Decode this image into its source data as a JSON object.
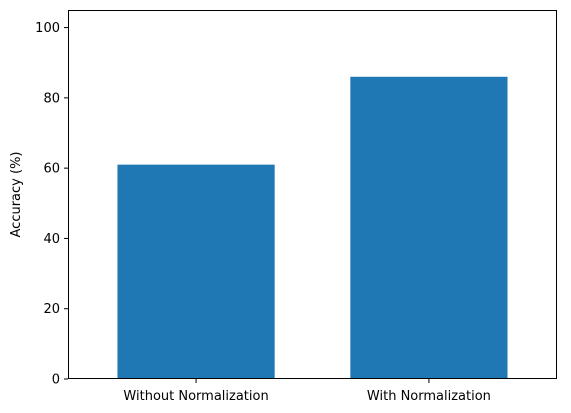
{
  "chart_data": {
    "type": "bar",
    "categories": [
      "Without Normalization",
      "With Normalization"
    ],
    "values": [
      61,
      86
    ],
    "xlabel": "",
    "ylabel": "Accuracy (%)",
    "ylim": [
      0,
      105
    ],
    "yticks": [
      "0",
      "20",
      "40",
      "60",
      "80",
      "100"
    ],
    "grid": false,
    "bar_color": "#1f77b4"
  }
}
